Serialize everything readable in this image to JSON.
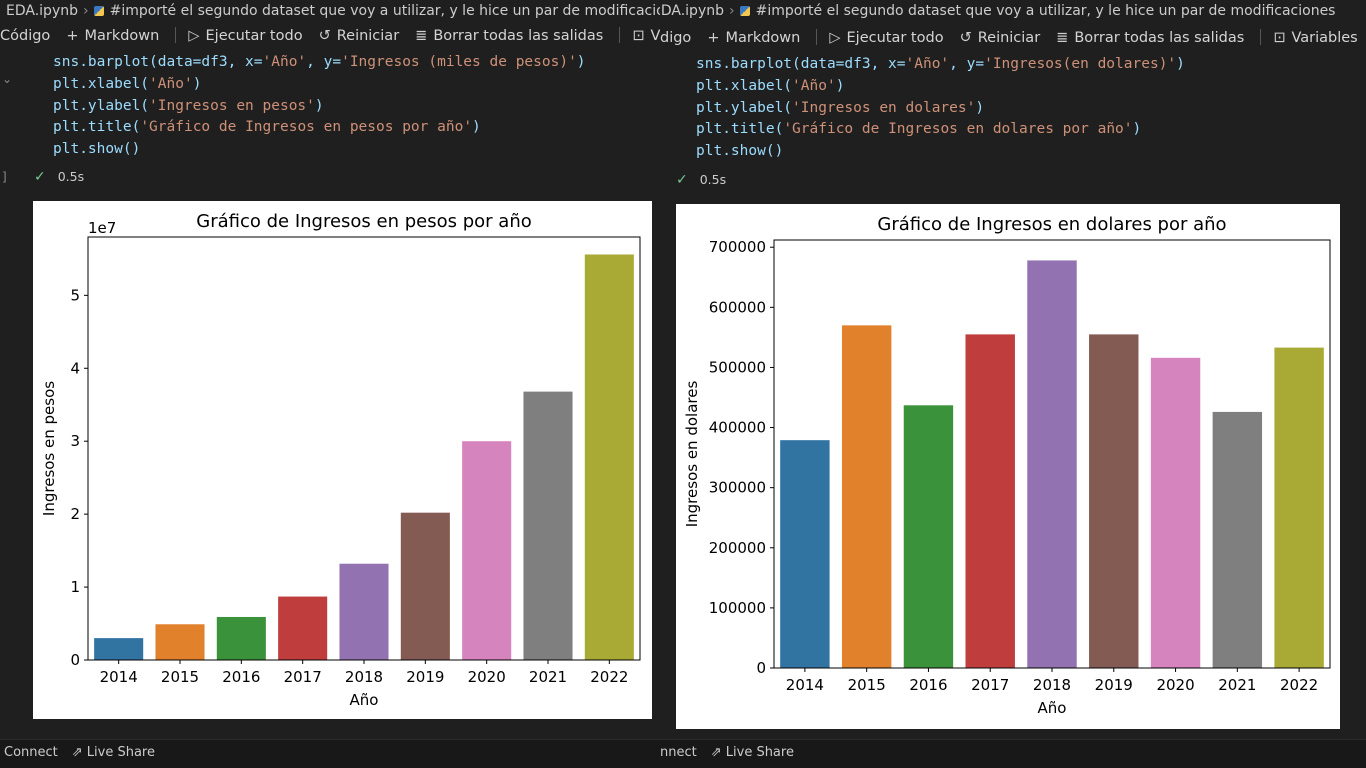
{
  "left": {
    "breadcrumb": {
      "file": "EDA.ipynb",
      "cell": "#importé el segundo dataset que voy a utilizar, y le hice un par de modificaciones"
    },
    "toolbar": {
      "code": "Código",
      "markdown": "Markdown",
      "run_all": "Ejecutar todo",
      "restart": "Reiniciar",
      "clear": "Borrar todas las salidas",
      "variables": "Vari"
    },
    "code_lines": [
      "sns.barplot(data=df3, x='Año', y='Ingresos (miles de pesos)')",
      "plt.xlabel('Año')",
      "plt.ylabel('Ingresos en pesos')",
      "plt.title('Gráfico de Ingresos en pesos por año')",
      "plt.show()"
    ],
    "exec_time": "0.5s",
    "status": {
      "connect": "Connect",
      "live_share": "Live Share"
    }
  },
  "right": {
    "breadcrumb": {
      "file": "EDA.ipynb",
      "cell": "#importé el segundo dataset que voy a utilizar, y le hice un par de modificaciones"
    },
    "toolbar": {
      "code": "digo",
      "markdown": "Markdown",
      "run_all": "Ejecutar todo",
      "restart": "Reiniciar",
      "clear": "Borrar todas las salidas",
      "variables": "Variables"
    },
    "code_lines": [
      "sns.barplot(data=df3, x='Año', y='Ingresos(en dolares)')",
      "plt.xlabel('Año')",
      "plt.ylabel('Ingresos en dolares')",
      "plt.title('Gráfico de Ingresos en dolares por año')",
      "plt.show()"
    ],
    "exec_time": "0.5s",
    "status": {
      "connect": "nnect",
      "live_share": "Live Share"
    }
  },
  "colors": [
    "#3274a1",
    "#e1812c",
    "#3a923a",
    "#c03d3e",
    "#9372b2",
    "#845b53",
    "#d684bd",
    "#7f7f7f",
    "#a9aa35"
  ],
  "chart_data": [
    {
      "type": "bar",
      "title": "Gráfico de Ingresos en pesos por año",
      "xlabel": "Año",
      "ylabel": "Ingresos en pesos",
      "offset_label": "1e7",
      "categories": [
        "2014",
        "2015",
        "2016",
        "2017",
        "2018",
        "2019",
        "2020",
        "2021",
        "2022"
      ],
      "values": [
        3000000,
        4900000,
        5900000,
        8700000,
        13200000,
        20200000,
        30000000,
        36800000,
        55600000
      ],
      "ylim": [
        0,
        58000000
      ],
      "yticks": [
        0,
        10000000,
        20000000,
        30000000,
        40000000,
        50000000
      ],
      "ytick_labels": [
        "0",
        "1",
        "2",
        "3",
        "4",
        "5"
      ],
      "grid": false,
      "legend": "none"
    },
    {
      "type": "bar",
      "title": "Gráfico de Ingresos en dolares por año",
      "xlabel": "Año",
      "ylabel": "Ingresos en dolares",
      "categories": [
        "2014",
        "2015",
        "2016",
        "2017",
        "2018",
        "2019",
        "2020",
        "2021",
        "2022"
      ],
      "values": [
        379000,
        570000,
        437000,
        555000,
        678000,
        555000,
        516000,
        426000,
        533000
      ],
      "ylim": [
        0,
        712000
      ],
      "yticks": [
        0,
        100000,
        200000,
        300000,
        400000,
        500000,
        600000,
        700000
      ],
      "ytick_labels": [
        "0",
        "100000",
        "200000",
        "300000",
        "400000",
        "500000",
        "600000",
        "700000"
      ],
      "grid": false,
      "legend": "none"
    }
  ]
}
